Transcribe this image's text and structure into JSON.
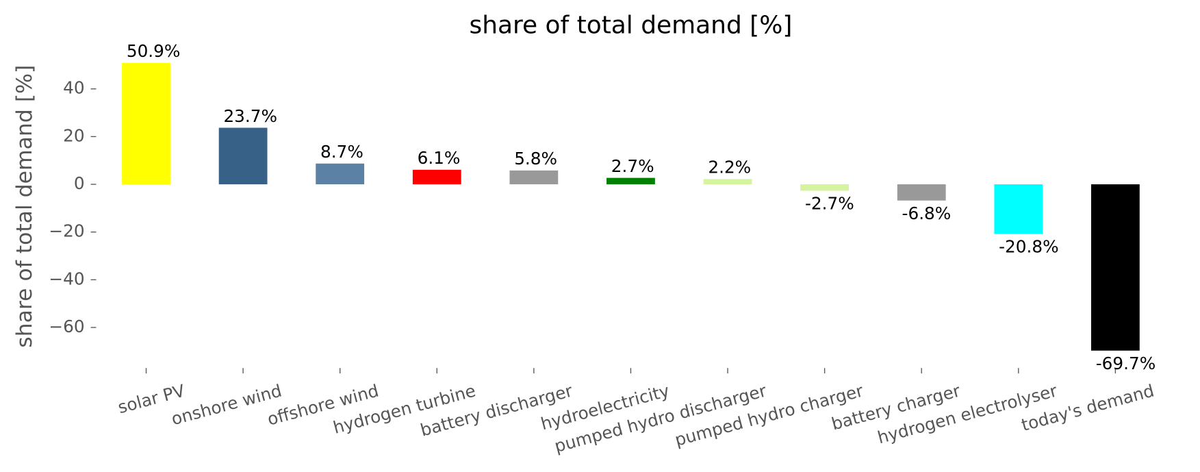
{
  "chart_data": {
    "type": "bar",
    "title": "share of total demand [%]",
    "y_label": "share of total demand [%]",
    "categories": [
      "solar PV",
      "onshore wind",
      "offshore wind",
      "hydrogen turbine",
      "battery discharger",
      "hydroelectricity",
      "pumped hydro discharger",
      "pumped hydro charger",
      "battery charger",
      "hydrogen electrolyser",
      "today's demand"
    ],
    "values": [
      50.9,
      23.7,
      8.7,
      6.1,
      5.8,
      2.7,
      2.2,
      -2.7,
      -6.8,
      -20.8,
      -69.7
    ],
    "value_labels": [
      "50.9%",
      "23.7%",
      "8.7%",
      "6.1%",
      "5.8%",
      "2.7%",
      "2.2%",
      "-2.7%",
      "-6.8%",
      "-20.8%",
      "-69.7%"
    ],
    "colors": [
      "#ffff00",
      "#376186",
      "#5b82a4",
      "#ff0000",
      "#999999",
      "#008000",
      "#d4f4a0",
      "#d4f4a0",
      "#999999",
      "#00ffff",
      "#000000"
    ],
    "ylim": [
      -77,
      54
    ],
    "yticks": [
      {
        "value": -60,
        "label": "−60"
      },
      {
        "value": -40,
        "label": "−40"
      },
      {
        "value": -20,
        "label": "−20"
      },
      0,
      20,
      40
    ],
    "grid": false
  }
}
